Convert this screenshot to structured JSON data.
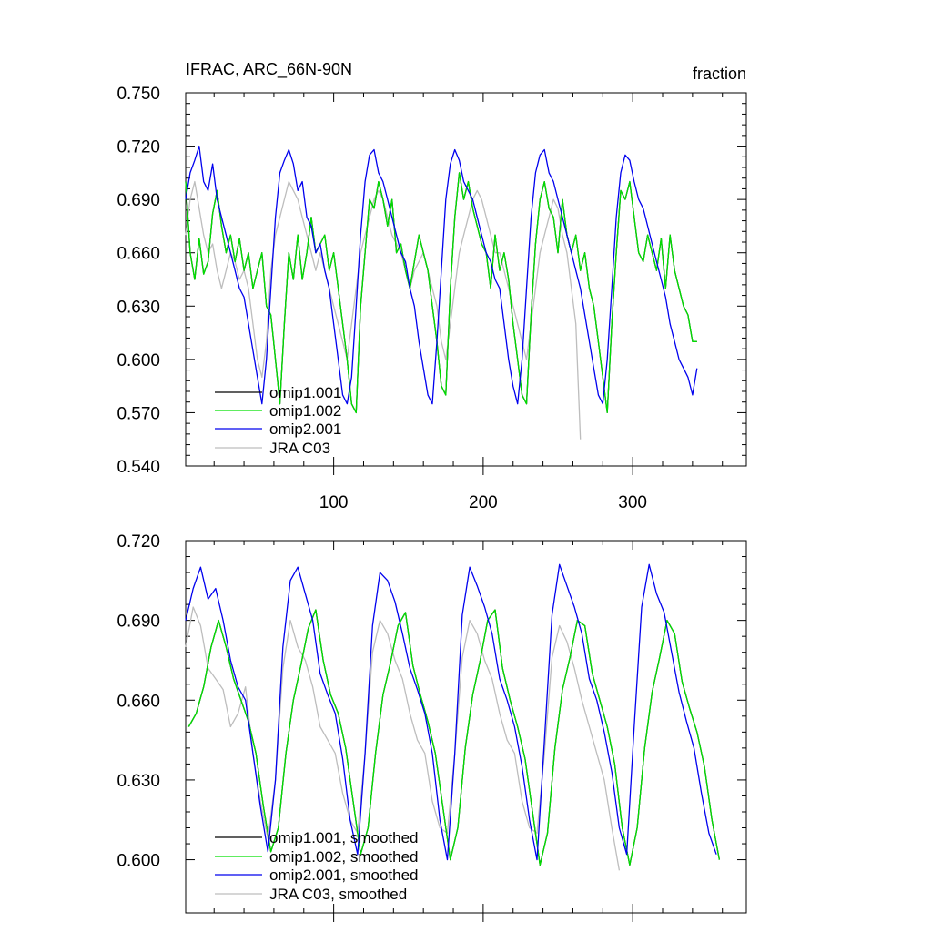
{
  "colors": {
    "omip1_001": "#000000",
    "omip1_002": "#00e000",
    "omip2_001": "#0000ee",
    "jra_c03": "#bdbdbd"
  },
  "chart_data": [
    {
      "type": "line",
      "title_left": "IFRAC, ARC_66N-90N",
      "title_right": "fraction",
      "xlim": [
        1,
        376
      ],
      "ylim": [
        0.54,
        0.75
      ],
      "x_ticks": [
        100,
        200,
        300
      ],
      "x_tick_labels": [
        "100",
        "200",
        "300"
      ],
      "y_ticks": [
        0.54,
        0.57,
        0.6,
        0.63,
        0.66,
        0.69,
        0.72,
        0.75
      ],
      "y_tick_labels": [
        "0.540",
        "0.570",
        "0.600",
        "0.630",
        "0.660",
        "0.690",
        "0.720",
        "0.750"
      ],
      "legend": [
        "omip1.001",
        "omip1.002",
        "omip2.001",
        "JRA C03"
      ],
      "legend_position": "bottom-left",
      "series": [
        {
          "name": "omip1.001",
          "color_key": "omip1_001",
          "x_start": 1,
          "x_step": 3,
          "values": [
            0.7,
            0.66,
            0.645,
            0.668,
            0.648,
            0.655,
            0.682,
            0.695,
            0.675,
            0.66,
            0.67,
            0.655,
            0.668,
            0.65,
            0.66,
            0.64,
            0.65,
            0.66,
            0.63,
            0.625,
            0.6,
            0.575,
            0.62,
            0.66,
            0.645,
            0.67,
            0.645,
            0.66,
            0.68,
            0.66,
            0.665,
            0.67,
            0.65,
            0.66,
            0.64,
            0.62,
            0.6,
            0.575,
            0.57,
            0.63,
            0.66,
            0.69,
            0.685,
            0.7,
            0.69,
            0.675,
            0.69,
            0.66,
            0.665,
            0.65,
            0.64,
            0.655,
            0.67,
            0.66,
            0.65,
            0.63,
            0.61,
            0.585,
            0.58,
            0.64,
            0.68,
            0.705,
            0.69,
            0.7,
            0.685,
            0.675,
            0.665,
            0.66,
            0.64,
            0.67,
            0.65,
            0.66,
            0.645,
            0.62,
            0.6,
            0.58,
            0.575,
            0.625,
            0.665,
            0.69,
            0.7,
            0.685,
            0.68,
            0.66,
            0.69,
            0.67,
            0.66,
            0.67,
            0.65,
            0.66,
            0.64,
            0.63,
            0.61,
            0.59,
            0.57,
            0.62,
            0.66,
            0.695,
            0.69,
            0.7,
            0.68,
            0.66,
            0.655,
            0.67,
            0.66,
            0.65,
            0.668,
            0.64,
            0.67,
            0.65,
            0.64,
            0.63,
            0.625,
            0.61,
            0.61
          ]
        },
        {
          "name": "omip1.002",
          "color_key": "omip1_002",
          "x_start": 1,
          "x_step": 3,
          "values": [
            0.7,
            0.66,
            0.645,
            0.668,
            0.648,
            0.655,
            0.682,
            0.695,
            0.675,
            0.66,
            0.67,
            0.655,
            0.668,
            0.65,
            0.66,
            0.64,
            0.65,
            0.66,
            0.63,
            0.625,
            0.6,
            0.575,
            0.62,
            0.66,
            0.645,
            0.67,
            0.645,
            0.66,
            0.68,
            0.66,
            0.665,
            0.67,
            0.65,
            0.66,
            0.64,
            0.62,
            0.6,
            0.575,
            0.57,
            0.63,
            0.66,
            0.69,
            0.685,
            0.7,
            0.69,
            0.675,
            0.69,
            0.66,
            0.665,
            0.65,
            0.64,
            0.655,
            0.67,
            0.66,
            0.65,
            0.63,
            0.61,
            0.585,
            0.58,
            0.64,
            0.68,
            0.705,
            0.69,
            0.7,
            0.685,
            0.675,
            0.665,
            0.66,
            0.64,
            0.67,
            0.65,
            0.66,
            0.645,
            0.62,
            0.6,
            0.58,
            0.575,
            0.625,
            0.665,
            0.69,
            0.7,
            0.685,
            0.68,
            0.66,
            0.69,
            0.67,
            0.66,
            0.67,
            0.65,
            0.66,
            0.64,
            0.63,
            0.61,
            0.59,
            0.57,
            0.62,
            0.66,
            0.695,
            0.69,
            0.7,
            0.68,
            0.66,
            0.655,
            0.67,
            0.66,
            0.65,
            0.668,
            0.64,
            0.67,
            0.65,
            0.64,
            0.63,
            0.625,
            0.61,
            0.61
          ]
        },
        {
          "name": "omip2.001",
          "color_key": "omip2_001",
          "x_start": 1,
          "x_step": 3,
          "values": [
            0.69,
            0.705,
            0.712,
            0.72,
            0.7,
            0.695,
            0.71,
            0.69,
            0.68,
            0.67,
            0.66,
            0.65,
            0.64,
            0.635,
            0.62,
            0.605,
            0.59,
            0.575,
            0.6,
            0.64,
            0.68,
            0.705,
            0.712,
            0.718,
            0.71,
            0.695,
            0.7,
            0.68,
            0.675,
            0.66,
            0.665,
            0.65,
            0.64,
            0.62,
            0.6,
            0.58,
            0.575,
            0.59,
            0.63,
            0.67,
            0.7,
            0.715,
            0.718,
            0.705,
            0.7,
            0.69,
            0.68,
            0.67,
            0.66,
            0.655,
            0.64,
            0.63,
            0.61,
            0.595,
            0.58,
            0.575,
            0.61,
            0.65,
            0.69,
            0.71,
            0.718,
            0.712,
            0.7,
            0.695,
            0.69,
            0.68,
            0.67,
            0.66,
            0.655,
            0.645,
            0.64,
            0.62,
            0.6,
            0.585,
            0.575,
            0.6,
            0.64,
            0.68,
            0.705,
            0.715,
            0.718,
            0.705,
            0.7,
            0.69,
            0.68,
            0.67,
            0.66,
            0.65,
            0.64,
            0.625,
            0.61,
            0.595,
            0.58,
            0.575,
            0.6,
            0.64,
            0.68,
            0.705,
            0.715,
            0.712,
            0.7,
            0.69,
            0.685,
            0.675,
            0.665,
            0.655,
            0.645,
            0.635,
            0.62,
            0.61,
            0.6,
            0.595,
            0.59,
            0.58,
            0.595
          ]
        },
        {
          "name": "JRA C03",
          "color_key": "jra_c03",
          "x_start": 1,
          "x_step": 3,
          "values": [
            0.67,
            0.69,
            0.7,
            0.685,
            0.67,
            0.66,
            0.665,
            0.65,
            0.64,
            0.65,
            0.66,
            0.655,
            0.645,
            0.65,
            0.64,
            0.62,
            0.6,
            0.59,
            0.61,
            0.65,
            0.67,
            0.68,
            0.69,
            0.7,
            0.695,
            0.69,
            0.68,
            0.67,
            0.66,
            0.65,
            0.66,
            0.65,
            0.64,
            0.63,
            0.62,
            0.61,
            0.6,
            0.62,
            0.64,
            0.66,
            0.67,
            0.68,
            0.69,
            0.695,
            0.69,
            0.68,
            0.67,
            0.665,
            0.66,
            0.65,
            0.64,
            0.65,
            0.655,
            0.66,
            0.65,
            0.64,
            0.63,
            0.61,
            0.6,
            0.62,
            0.64,
            0.66,
            0.67,
            0.68,
            0.69,
            0.695,
            0.69,
            0.68,
            0.67,
            0.66,
            0.66,
            0.65,
            0.64,
            0.63,
            0.62,
            0.61,
            0.6,
            0.62,
            0.64,
            0.66,
            0.67,
            0.68,
            0.69,
            0.685,
            0.67,
            0.66,
            0.64,
            0.62,
            0.555
          ]
        }
      ]
    },
    {
      "type": "line",
      "xlim": [
        1,
        376
      ],
      "ylim": [
        0.58,
        0.72
      ],
      "x_ticks": [
        100,
        200,
        300
      ],
      "x_tick_labels": [],
      "y_ticks": [
        0.6,
        0.63,
        0.66,
        0.69,
        0.72
      ],
      "y_tick_labels": [
        "0.600",
        "0.630",
        "0.660",
        "0.690",
        "0.720"
      ],
      "legend": [
        "omip1.001, smoothed",
        "omip1.002, smoothed",
        "omip2.001, smoothed",
        "JRA C03, smoothed"
      ],
      "legend_position": "bottom-left",
      "series": [
        {
          "name": "omip1.001, smoothed",
          "color_key": "omip1_001",
          "x_start": 3,
          "x_step": 5,
          "values": [
            0.65,
            0.655,
            0.665,
            0.68,
            0.69,
            0.68,
            0.668,
            0.66,
            0.652,
            0.64,
            0.62,
            0.603,
            0.612,
            0.64,
            0.66,
            0.673,
            0.687,
            0.694,
            0.675,
            0.662,
            0.655,
            0.642,
            0.622,
            0.602,
            0.612,
            0.64,
            0.662,
            0.674,
            0.688,
            0.693,
            0.673,
            0.662,
            0.652,
            0.64,
            0.62,
            0.6,
            0.612,
            0.642,
            0.662,
            0.675,
            0.69,
            0.694,
            0.672,
            0.66,
            0.65,
            0.638,
            0.618,
            0.598,
            0.61,
            0.642,
            0.664,
            0.676,
            0.69,
            0.688,
            0.67,
            0.66,
            0.65,
            0.636,
            0.612,
            0.598,
            0.612,
            0.642,
            0.663,
            0.676,
            0.69,
            0.685,
            0.667,
            0.657,
            0.648,
            0.635,
            0.615,
            0.6
          ]
        },
        {
          "name": "omip1.002, smoothed",
          "color_key": "omip1_002",
          "x_start": 3,
          "x_step": 5,
          "values": [
            0.65,
            0.655,
            0.665,
            0.68,
            0.69,
            0.68,
            0.668,
            0.66,
            0.652,
            0.64,
            0.62,
            0.603,
            0.612,
            0.64,
            0.66,
            0.673,
            0.687,
            0.694,
            0.675,
            0.662,
            0.655,
            0.642,
            0.622,
            0.602,
            0.612,
            0.64,
            0.662,
            0.674,
            0.688,
            0.693,
            0.673,
            0.662,
            0.652,
            0.64,
            0.62,
            0.6,
            0.612,
            0.642,
            0.662,
            0.675,
            0.69,
            0.694,
            0.672,
            0.66,
            0.65,
            0.638,
            0.618,
            0.598,
            0.61,
            0.642,
            0.664,
            0.676,
            0.69,
            0.688,
            0.67,
            0.66,
            0.65,
            0.636,
            0.612,
            0.598,
            0.612,
            0.642,
            0.663,
            0.676,
            0.69,
            0.685,
            0.667,
            0.657,
            0.648,
            0.635,
            0.615,
            0.6
          ]
        },
        {
          "name": "omip2.001, smoothed",
          "color_key": "omip2_001",
          "x_start": 1,
          "x_step": 5,
          "values": [
            0.69,
            0.702,
            0.71,
            0.698,
            0.702,
            0.69,
            0.675,
            0.665,
            0.66,
            0.64,
            0.62,
            0.603,
            0.63,
            0.68,
            0.705,
            0.71,
            0.7,
            0.69,
            0.67,
            0.662,
            0.655,
            0.638,
            0.615,
            0.602,
            0.64,
            0.688,
            0.708,
            0.705,
            0.697,
            0.685,
            0.672,
            0.664,
            0.655,
            0.64,
            0.615,
            0.6,
            0.64,
            0.692,
            0.71,
            0.703,
            0.695,
            0.685,
            0.668,
            0.66,
            0.65,
            0.635,
            0.615,
            0.6,
            0.645,
            0.692,
            0.711,
            0.703,
            0.695,
            0.685,
            0.668,
            0.66,
            0.648,
            0.633,
            0.612,
            0.602,
            0.65,
            0.695,
            0.711,
            0.7,
            0.693,
            0.678,
            0.663,
            0.652,
            0.642,
            0.625,
            0.61,
            0.602
          ]
        },
        {
          "name": "JRA C03, smoothed",
          "color_key": "jra_c03",
          "x_start": 1,
          "x_step": 5,
          "values": [
            0.68,
            0.695,
            0.688,
            0.672,
            0.668,
            0.664,
            0.65,
            0.655,
            0.665,
            0.64,
            0.622,
            0.608,
            0.63,
            0.672,
            0.69,
            0.68,
            0.675,
            0.665,
            0.65,
            0.645,
            0.64,
            0.625,
            0.615,
            0.61,
            0.64,
            0.678,
            0.69,
            0.685,
            0.675,
            0.668,
            0.655,
            0.645,
            0.64,
            0.622,
            0.612,
            0.61,
            0.64,
            0.676,
            0.69,
            0.685,
            0.675,
            0.668,
            0.655,
            0.645,
            0.64,
            0.622,
            0.612,
            0.61,
            0.64,
            0.676,
            0.688,
            0.682,
            0.672,
            0.66,
            0.65,
            0.64,
            0.63,
            0.612,
            0.596
          ]
        }
      ]
    }
  ]
}
